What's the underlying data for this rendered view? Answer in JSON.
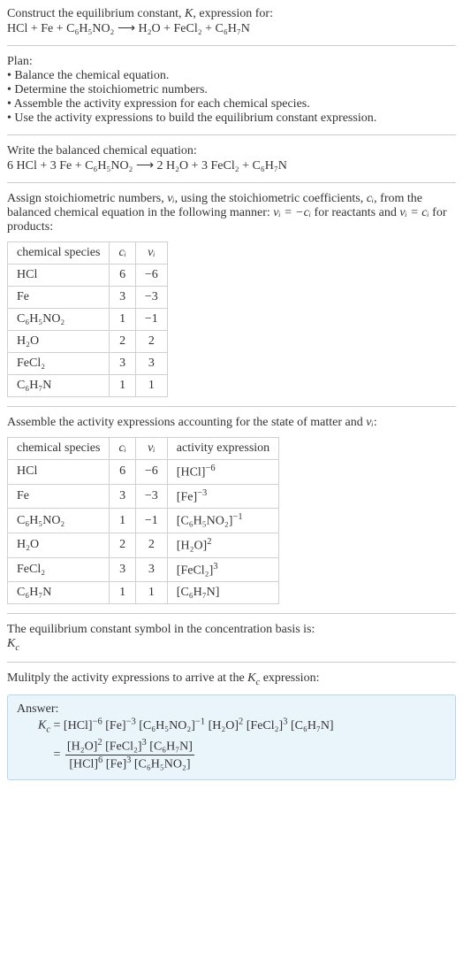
{
  "header": {
    "line1_pre": "Construct the equilibrium constant, ",
    "line1_K": "K",
    "line1_post": ", expression for:",
    "equation": "HCl + Fe + C₆H₅NO₂  ⟶  H₂O + FeCl₂ + C₆H₇N"
  },
  "plan": {
    "title": "Plan:",
    "b1": "• Balance the chemical equation.",
    "b2": "• Determine the stoichiometric numbers.",
    "b3": "• Assemble the activity expression for each chemical species.",
    "b4": "• Use the activity expressions to build the equilibrium constant expression."
  },
  "balanced": {
    "title": "Write the balanced chemical equation:",
    "equation": "6 HCl + 3 Fe + C₆H₅NO₂  ⟶  2 H₂O + 3 FeCl₂ + C₆H₇N"
  },
  "stoich": {
    "intro_a": "Assign stoichiometric numbers, ",
    "nu_i": "νᵢ",
    "intro_b": ", using the stoichiometric coefficients, ",
    "c_i": "cᵢ",
    "intro_c": ", from the balanced chemical equation in the following manner: ",
    "rel1": "νᵢ = −cᵢ",
    "intro_d": " for reactants and ",
    "rel2": "νᵢ = cᵢ",
    "intro_e": " for products:"
  },
  "table1": {
    "h1": "chemical species",
    "h2": "cᵢ",
    "h3": "νᵢ",
    "rows": [
      {
        "s": "HCl",
        "c": "6",
        "n": "−6"
      },
      {
        "s": "Fe",
        "c": "3",
        "n": "−3"
      },
      {
        "s": "C₆H₅NO₂",
        "c": "1",
        "n": "−1"
      },
      {
        "s": "H₂O",
        "c": "2",
        "n": "2"
      },
      {
        "s": "FeCl₂",
        "c": "3",
        "n": "3"
      },
      {
        "s": "C₆H₇N",
        "c": "1",
        "n": "1"
      }
    ]
  },
  "assemble": {
    "intro_a": "Assemble the activity expressions accounting for the state of matter and ",
    "nu_i": "νᵢ",
    "intro_b": ":"
  },
  "table2": {
    "h1": "chemical species",
    "h2": "cᵢ",
    "h3": "νᵢ",
    "h4": "activity expression",
    "rows": [
      {
        "s": "HCl",
        "c": "6",
        "n": "−6",
        "a_base": "[HCl]",
        "a_exp": "−6"
      },
      {
        "s": "Fe",
        "c": "3",
        "n": "−3",
        "a_base": "[Fe]",
        "a_exp": "−3"
      },
      {
        "s": "C₆H₅NO₂",
        "c": "1",
        "n": "−1",
        "a_base": "[C₆H₅NO₂]",
        "a_exp": "−1"
      },
      {
        "s": "H₂O",
        "c": "2",
        "n": "2",
        "a_base": "[H₂O]",
        "a_exp": "2"
      },
      {
        "s": "FeCl₂",
        "c": "3",
        "n": "3",
        "a_base": "[FeCl₂]",
        "a_exp": "3"
      },
      {
        "s": "C₆H₇N",
        "c": "1",
        "n": "1",
        "a_base": "[C₆H₇N]",
        "a_exp": ""
      }
    ]
  },
  "eqconst": {
    "line1": "The equilibrium constant symbol in the concentration basis is:",
    "sym_K": "K",
    "sym_c": "c"
  },
  "mult": {
    "intro_a": "Mulitply the activity expressions to arrive at the ",
    "K": "K",
    "c": "c",
    "intro_b": " expression:"
  },
  "answer": {
    "label": "Answer:",
    "Kc_K": "K",
    "Kc_c": "c",
    "eq": " = ",
    "line1_terms": [
      {
        "base": "[HCl]",
        "exp": "−6"
      },
      {
        "base": "[Fe]",
        "exp": "−3"
      },
      {
        "base": "[C₆H₅NO₂]",
        "exp": "−1"
      },
      {
        "base": "[H₂O]",
        "exp": "2"
      },
      {
        "base": "[FeCl₂]",
        "exp": "3"
      },
      {
        "base": "[C₆H₇N]",
        "exp": ""
      }
    ],
    "frac_eq": " = ",
    "num_terms": [
      {
        "base": "[H₂O]",
        "exp": "2"
      },
      {
        "base": "[FeCl₂]",
        "exp": "3"
      },
      {
        "base": "[C₆H₇N]",
        "exp": ""
      }
    ],
    "den_terms": [
      {
        "base": "[HCl]",
        "exp": "6"
      },
      {
        "base": "[Fe]",
        "exp": "3"
      },
      {
        "base": "[C₆H₅NO₂]",
        "exp": ""
      }
    ]
  }
}
